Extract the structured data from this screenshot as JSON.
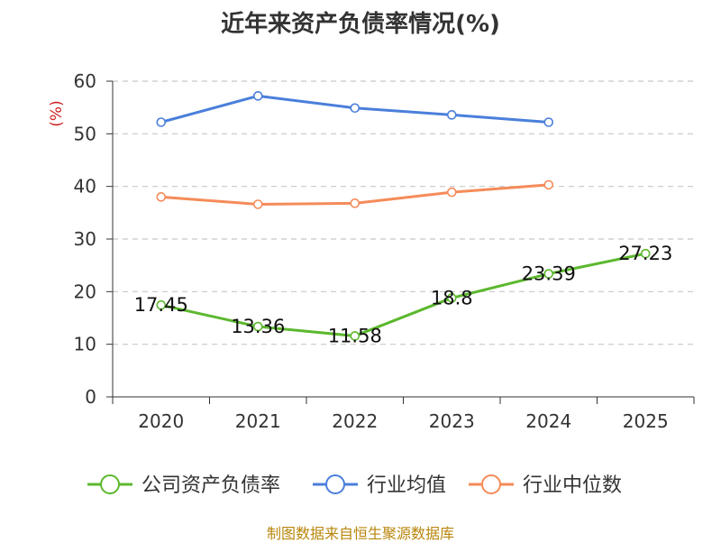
{
  "chart_data": {
    "type": "line",
    "title": "近年来资产负债率情况(%)",
    "ylabel": "(%)",
    "xlabel": "",
    "categories": [
      "2020",
      "2021",
      "2022",
      "2023",
      "2024",
      "2025"
    ],
    "ylim": [
      0,
      60
    ],
    "yticks": [
      0,
      10,
      20,
      30,
      40,
      50,
      60
    ],
    "grid": true,
    "legend_position": "bottom",
    "series": [
      {
        "name": "公司资产负债率",
        "color": "#5cb82e",
        "values": [
          17.45,
          13.36,
          11.58,
          18.8,
          23.39,
          27.23
        ],
        "labels": [
          "17.45",
          "13.36",
          "11.58",
          "18.8",
          "23.39",
          "27.23"
        ]
      },
      {
        "name": "行业均值",
        "color": "#4a7fdb",
        "values": [
          52.2,
          57.2,
          54.9,
          53.6,
          52.2,
          null
        ]
      },
      {
        "name": "行业中位数",
        "color": "#f58b59",
        "values": [
          38.0,
          36.6,
          36.8,
          38.9,
          40.3,
          null
        ]
      }
    ]
  },
  "footer": {
    "source": "制图数据来自恒生聚源数据库"
  }
}
